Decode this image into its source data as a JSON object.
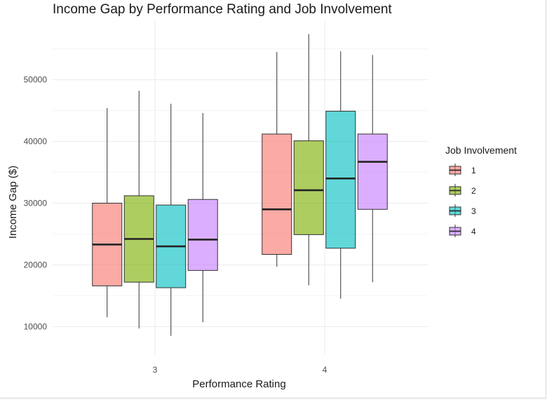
{
  "chart_data": {
    "type": "boxplot",
    "title": "Income Gap by Performance Rating and Job Involvement",
    "xlabel": "Performance Rating",
    "ylabel": "Income Gap ($)",
    "categories": [
      "3",
      "4"
    ],
    "ylim": [
      5500,
      59500
    ],
    "yticks": [
      10000,
      20000,
      30000,
      40000,
      50000
    ],
    "ytick_labels": [
      "10000",
      "20000",
      "30000",
      "40000",
      "50000"
    ],
    "grid": true,
    "legend": {
      "title": "Job Involvement",
      "position": "right",
      "entries": [
        "1",
        "2",
        "3",
        "4"
      ]
    },
    "series": [
      {
        "name": "1",
        "color": "#F8766D",
        "boxes": [
          {
            "category": "3",
            "min": 11500,
            "q1": 16600,
            "median": 23300,
            "q3": 30000,
            "max": 45400
          },
          {
            "category": "4",
            "min": 19700,
            "q1": 21700,
            "median": 29000,
            "q3": 41200,
            "max": 54500
          }
        ]
      },
      {
        "name": "2",
        "color": "#7CAE00",
        "boxes": [
          {
            "category": "3",
            "min": 9700,
            "q1": 17200,
            "median": 24200,
            "q3": 31200,
            "max": 48200
          },
          {
            "category": "4",
            "min": 16700,
            "q1": 24900,
            "median": 32100,
            "q3": 40100,
            "max": 57400
          }
        ]
      },
      {
        "name": "3",
        "color": "#00BFC4",
        "boxes": [
          {
            "category": "3",
            "min": 8500,
            "q1": 16300,
            "median": 23000,
            "q3": 29700,
            "max": 46100
          },
          {
            "category": "4",
            "min": 14500,
            "q1": 22700,
            "median": 34000,
            "q3": 44900,
            "max": 54600
          }
        ]
      },
      {
        "name": "4",
        "color": "#C77CFF",
        "boxes": [
          {
            "category": "3",
            "min": 10700,
            "q1": 19100,
            "median": 24100,
            "q3": 30600,
            "max": 44600
          },
          {
            "category": "4",
            "min": 17200,
            "q1": 29000,
            "median": 36700,
            "q3": 41200,
            "max": 54000
          }
        ]
      }
    ]
  }
}
